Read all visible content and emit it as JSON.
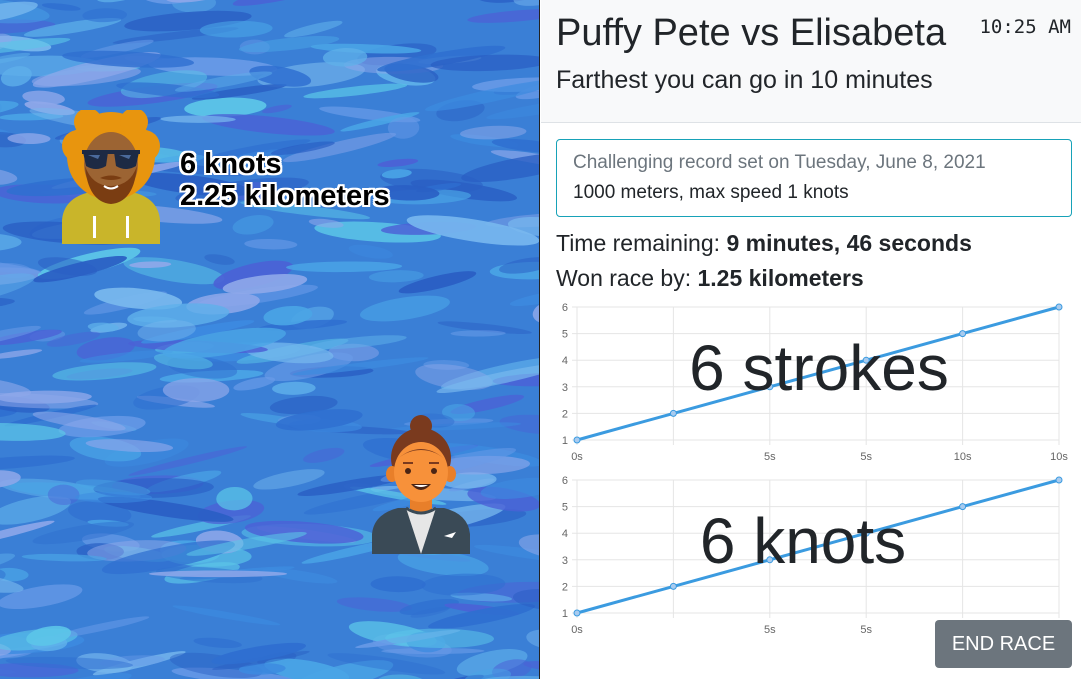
{
  "racers": [
    {
      "name": "Puffy Pete",
      "avatar": "afro-sunglasses-avatar-icon",
      "speed": "6 knots",
      "distance": "2.25 kilometers"
    },
    {
      "name": "Elisabeta",
      "avatar": "bun-hair-avatar-icon"
    }
  ],
  "header": {
    "title": "Puffy Pete vs Elisabeta",
    "subtitle": "Farthest you can go in 10 minutes",
    "clock": "10:25 AM"
  },
  "record": {
    "title": "Challenging record set on Tuesday, June 8, 2021",
    "detail": "1000 meters, max speed 1 knots"
  },
  "stats": {
    "time_remaining_label": "Time remaining:",
    "time_remaining_value": "9 minutes, 46 seconds",
    "won_by_label": "Won race by:",
    "won_by_value": "1.25 kilometers"
  },
  "colors": {
    "accent": "#17a2b8",
    "line": "#3b9be0",
    "button": "#6c757d"
  },
  "end_button_label": "END RACE",
  "chart_data": [
    {
      "type": "line",
      "overlay": "6 strokes",
      "categories": [
        "0s",
        "",
        "5s",
        "5s",
        "10s",
        "10s"
      ],
      "values": [
        1,
        2,
        3,
        4,
        5,
        6
      ],
      "ylim": [
        1,
        6
      ],
      "yticks": [
        "1",
        "2",
        "3",
        "4",
        "5",
        "6"
      ],
      "grid": true
    },
    {
      "type": "line",
      "overlay": "6 knots",
      "categories": [
        "0s",
        "",
        "5s",
        "5s",
        "10s",
        "10s"
      ],
      "values": [
        1,
        2,
        3,
        4,
        5,
        6
      ],
      "ylim": [
        1,
        6
      ],
      "yticks": [
        "1",
        "2",
        "3",
        "4",
        "5",
        "6"
      ],
      "grid": true
    }
  ]
}
